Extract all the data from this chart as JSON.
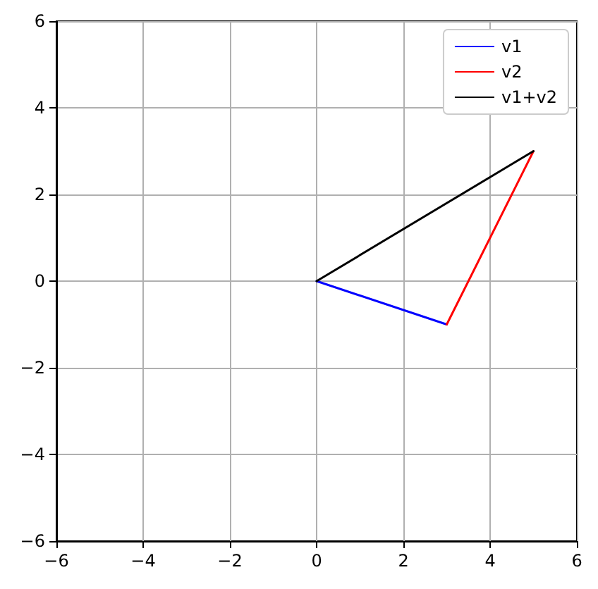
{
  "chart_data": {
    "type": "line",
    "xlim": [
      -6,
      6
    ],
    "ylim": [
      -6,
      6
    ],
    "xticks": [
      -6,
      -4,
      -2,
      0,
      2,
      4,
      6
    ],
    "yticks": [
      -6,
      -4,
      -2,
      0,
      2,
      4,
      6
    ],
    "grid": true,
    "legend": "top right",
    "marker": "none",
    "line_style": "solid",
    "series": [
      {
        "name": "v1",
        "color": "#0000ff",
        "x": [
          0,
          3
        ],
        "values": [
          0,
          -1
        ]
      },
      {
        "name": "v2",
        "color": "#ff0000",
        "x": [
          3,
          5
        ],
        "values": [
          -1,
          3
        ]
      },
      {
        "name": "v1+v2",
        "color": "#000000",
        "x": [
          0,
          5
        ],
        "values": [
          0,
          3
        ]
      }
    ]
  }
}
